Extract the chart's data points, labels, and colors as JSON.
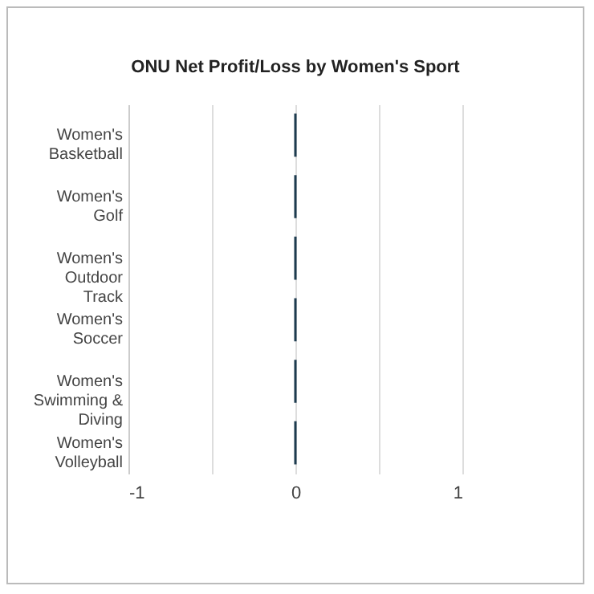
{
  "chart_data": {
    "type": "bar",
    "orientation": "horizontal",
    "title": "ONU Net Profit/Loss by Women's Sport",
    "categories": [
      "Women's Basketball",
      "Women's Golf",
      "Women's Outdoor Track",
      "Women's Soccer",
      "Women's Swimming & Diving",
      "Women's Volleyball"
    ],
    "values": [
      0,
      0,
      0,
      0,
      0,
      0
    ],
    "color": "#1d3b4f",
    "xlim": [
      -1,
      1
    ],
    "xticks": [
      -1,
      {
        "value": -0.5,
        "label": null
      },
      0,
      {
        "value": 0.5,
        "label": null
      },
      1
    ],
    "grid": "x"
  }
}
